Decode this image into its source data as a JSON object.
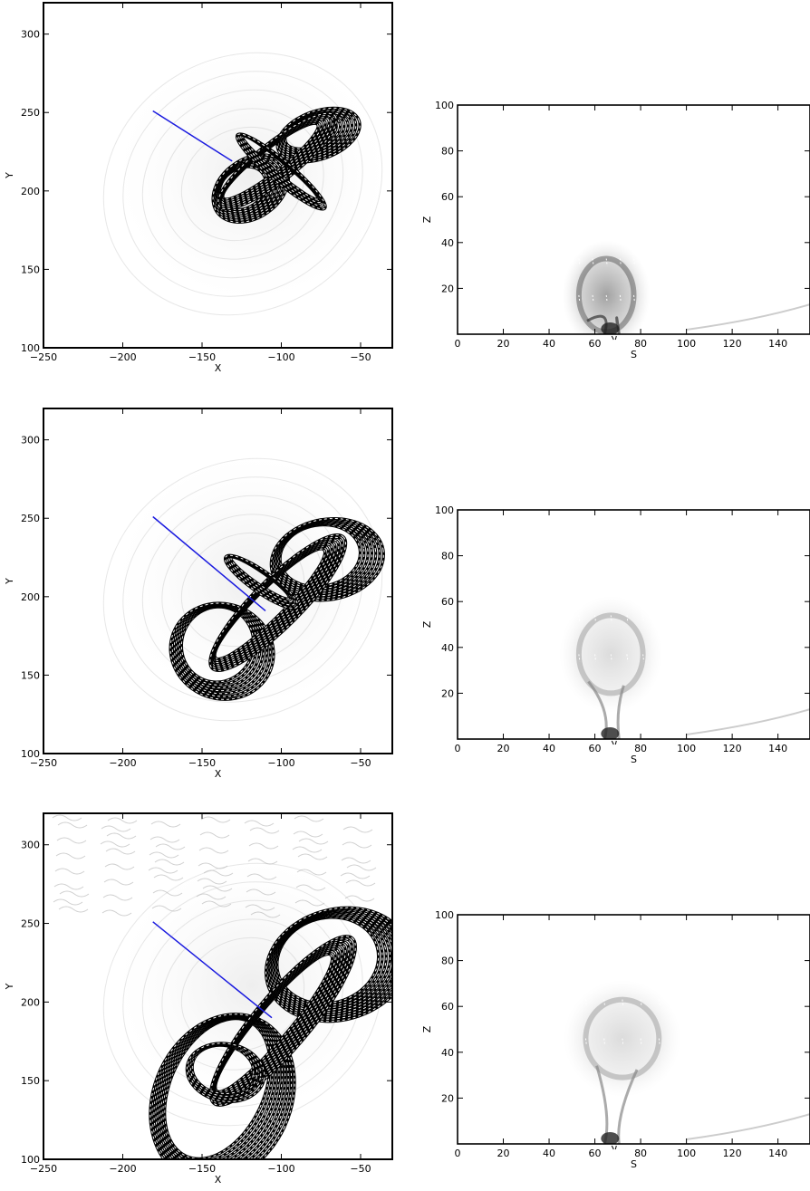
{
  "chart_data": [
    {
      "type": "image",
      "xlabel": "X",
      "ylabel": "Y",
      "xlim": [
        -250,
        -30
      ],
      "ylim": [
        100,
        320
      ],
      "xticks": [
        -250,
        -200,
        -150,
        -100,
        -50
      ],
      "yticks": [
        100,
        150,
        200,
        250,
        300
      ],
      "cut_line": {
        "x": [
          -181,
          -131
        ],
        "y": [
          251,
          219
        ],
        "color": "#1a1adf"
      }
    },
    {
      "type": "image",
      "xlabel": "S",
      "ylabel": "Z",
      "xlim": [
        0,
        154
      ],
      "ylim": [
        0,
        100
      ],
      "xticks": [
        0,
        20,
        40,
        60,
        80,
        100,
        120,
        140
      ],
      "yticks": [
        20,
        40,
        60,
        80,
        100
      ],
      "marker_s": 69
    },
    {
      "type": "image",
      "xlabel": "X",
      "ylabel": "Y",
      "xlim": [
        -250,
        -30
      ],
      "ylim": [
        100,
        320
      ],
      "xticks": [
        -250,
        -200,
        -150,
        -100,
        -50
      ],
      "yticks": [
        100,
        150,
        200,
        250,
        300
      ],
      "cut_line": {
        "x": [
          -181,
          -110
        ],
        "y": [
          251,
          191
        ],
        "color": "#1a1adf"
      }
    },
    {
      "type": "image",
      "xlabel": "S",
      "ylabel": "Z",
      "xlim": [
        0,
        154
      ],
      "ylim": [
        0,
        100
      ],
      "xticks": [
        0,
        20,
        40,
        60,
        80,
        100,
        120,
        140
      ],
      "yticks": [
        20,
        40,
        60,
        80,
        100
      ],
      "marker_s": 69
    },
    {
      "type": "image",
      "xlabel": "X",
      "ylabel": "Y",
      "xlim": [
        -250,
        -30
      ],
      "ylim": [
        100,
        320
      ],
      "xticks": [
        -250,
        -200,
        -150,
        -100,
        -50
      ],
      "yticks": [
        100,
        150,
        200,
        250,
        300
      ],
      "cut_line": {
        "x": [
          -181,
          -106
        ],
        "y": [
          251,
          190
        ],
        "color": "#1a1adf"
      }
    },
    {
      "type": "image",
      "xlabel": "S",
      "ylabel": "Z",
      "xlim": [
        0,
        154
      ],
      "ylim": [
        0,
        100
      ],
      "xticks": [
        0,
        20,
        40,
        60,
        80,
        100,
        120,
        140
      ],
      "yticks": [
        20,
        40,
        60,
        80,
        100
      ],
      "marker_s": 69
    }
  ]
}
